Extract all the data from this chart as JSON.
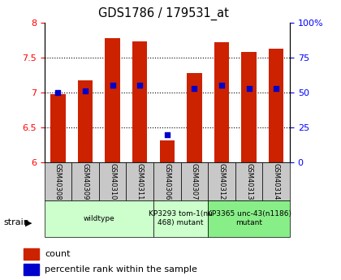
{
  "title": "GDS1786 / 179531_at",
  "samples": [
    "GSM40308",
    "GSM40309",
    "GSM40310",
    "GSM40311",
    "GSM40306",
    "GSM40307",
    "GSM40312",
    "GSM40313",
    "GSM40314"
  ],
  "bar_values": [
    6.97,
    7.17,
    7.77,
    7.73,
    6.32,
    7.28,
    7.72,
    7.58,
    7.62
  ],
  "percentile_values": [
    50,
    51,
    55,
    55,
    20,
    53,
    55,
    53,
    53
  ],
  "ylim_left": [
    6.0,
    8.0
  ],
  "ylim_right": [
    0,
    100
  ],
  "bar_color": "#CC2200",
  "dot_color": "#0000CC",
  "left_yticks": [
    6.0,
    6.5,
    7.0,
    7.5,
    8.0
  ],
  "right_yticks": [
    0,
    25,
    50,
    75,
    100
  ],
  "left_ytick_labels": [
    "6",
    "6.5",
    "7",
    "7.5",
    "8"
  ],
  "right_ytick_labels": [
    "0",
    "25",
    "50",
    "75",
    "100%"
  ],
  "bar_width": 0.55,
  "group_configs": [
    {
      "start": 0,
      "end": 3,
      "label": "wildtype",
      "color": "#CCFFCC"
    },
    {
      "start": 4,
      "end": 5,
      "label": "KP3293 tom-1(nu\n468) mutant",
      "color": "#CCFFCC"
    },
    {
      "start": 6,
      "end": 8,
      "label": "KP3365 unc-43(n1186)\nmutant",
      "color": "#88EE88"
    }
  ],
  "sample_box_color": "#C8C8C8"
}
